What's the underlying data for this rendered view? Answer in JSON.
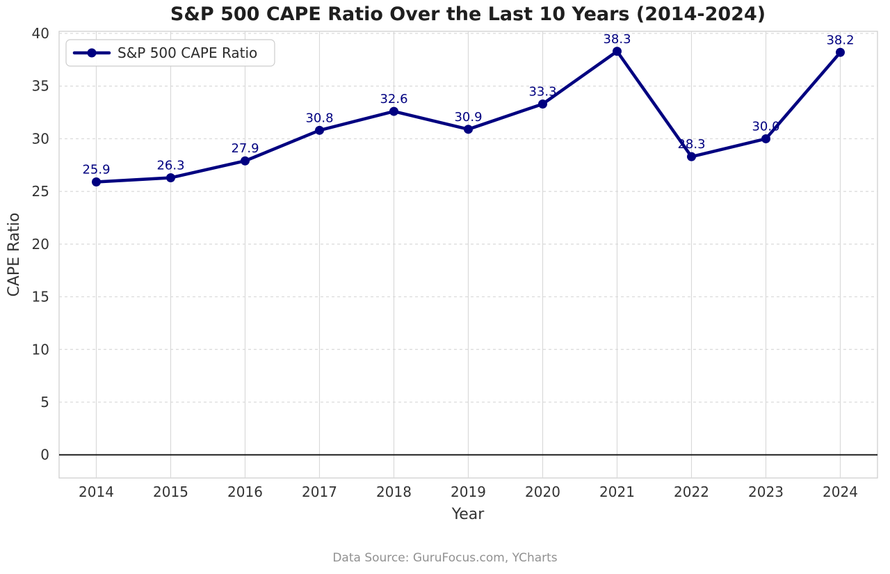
{
  "page": {
    "title": "S&P 500 CAPE Ratio Over the Last 10 Years (2014-2024)"
  },
  "footer": {
    "source_note": "Data Source: GuruFocus.com, YCharts"
  },
  "chart_data": {
    "type": "line",
    "title": "S&P 500 CAPE Ratio Over the Last 10 Years (2014-2024)",
    "xlabel": "Year",
    "ylabel": "CAPE Ratio",
    "categories": [
      "2014",
      "2015",
      "2016",
      "2017",
      "2018",
      "2019",
      "2020",
      "2021",
      "2022",
      "2023",
      "2024"
    ],
    "series": [
      {
        "name": "S&P 500 CAPE Ratio",
        "values": [
          25.9,
          26.3,
          27.9,
          30.8,
          32.6,
          30.9,
          33.3,
          38.3,
          28.3,
          30.0,
          38.2
        ],
        "point_labels": [
          "25.9",
          "26.3",
          "27.9",
          "30.8",
          "32.6",
          "30.9",
          "33.3",
          "38.3",
          "28.3",
          "30.0",
          "38.2"
        ],
        "color": "#000080"
      }
    ],
    "ylim": [
      -2.2,
      40.2
    ],
    "yticks": [
      0,
      5,
      10,
      15,
      20,
      25,
      30,
      35,
      40
    ],
    "grid": true,
    "legend_position": "upper-left",
    "zero_line": true
  },
  "colors": {
    "series": "#000080",
    "title_text": "#1f1f1f",
    "tick_text": "#333333",
    "grid": "#d9d9d9",
    "spine": "#cccccc",
    "zero_line": "#111111",
    "source_text": "#919191",
    "background": "#ffffff"
  }
}
